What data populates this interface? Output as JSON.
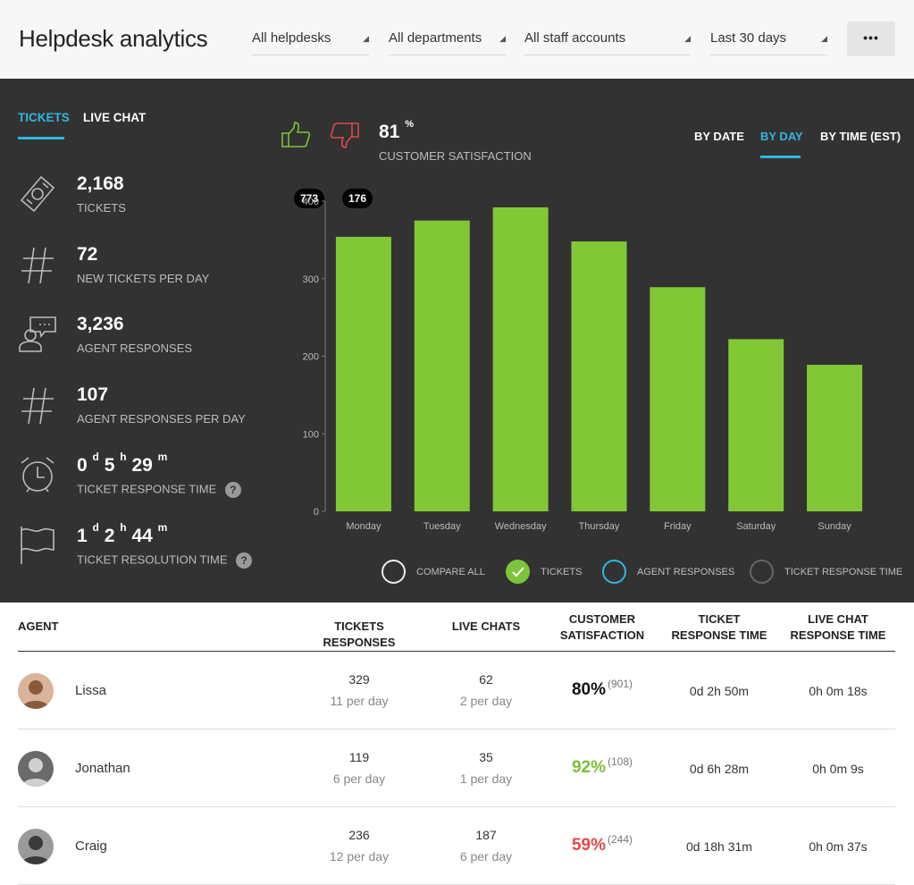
{
  "header": {
    "title": "Helpdesk analytics",
    "filters": {
      "helpdesk": "All helpdesks",
      "department": "All departments",
      "staff": "All staff accounts",
      "period": "Last 30 days"
    },
    "more_label": "•••"
  },
  "tabs": {
    "tickets": "TICKETS",
    "live_chat": "LIVE CHAT"
  },
  "stats": {
    "tickets": {
      "value": "2,168",
      "label": "TICKETS"
    },
    "new_per_day": {
      "value": "72",
      "label": "NEW TICKETS PER DAY"
    },
    "agent_responses": {
      "value": "3,236",
      "label": "AGENT RESPONSES"
    },
    "responses_per_day": {
      "value": "107",
      "label": "AGENT RESPONSES PER DAY"
    },
    "response_time": {
      "d": "0",
      "h": "5",
      "m": "29",
      "label": "TICKET RESPONSE TIME"
    },
    "resolution_time": {
      "d": "1",
      "h": "2",
      "m": "44",
      "label": "TICKET RESOLUTION TIME"
    },
    "unit_d": "d",
    "unit_h": "h",
    "unit_m": "m",
    "help": "?"
  },
  "satisfaction": {
    "likes": "773",
    "dislikes": "176",
    "percent": "81",
    "percent_sign": "%",
    "label": "CUSTOMER SATISFACTION"
  },
  "view_tabs": {
    "by_date": "BY DATE",
    "by_day": "BY DAY",
    "by_time": "BY TIME (EST)"
  },
  "chart_data": {
    "type": "bar",
    "categories": [
      "Monday",
      "Tuesday",
      "Wednesday",
      "Thursday",
      "Friday",
      "Saturday",
      "Sunday"
    ],
    "series": [
      {
        "name": "TICKETS",
        "values": [
          354,
          375,
          392,
          348,
          289,
          222,
          189
        ]
      }
    ],
    "yticks": [
      "0",
      "100",
      "200",
      "300",
      "400"
    ],
    "ylim": [
      0,
      400
    ],
    "color": "#82c836"
  },
  "legend": {
    "compare_all": "COMPARE ALL",
    "tickets": "TICKETS",
    "agent_responses": "AGENT RESPONSES",
    "ticket_response_time": "TICKET RESPONSE TIME"
  },
  "table": {
    "headers": {
      "agent": "AGENT",
      "ticket_responses": "TICKETS RESPONSES",
      "live_chats": "LIVE CHATS",
      "satisfaction_1": "CUSTOMER",
      "satisfaction_2": "SATISFACTION",
      "ticket_rt_1": "TICKET",
      "ticket_rt_2": "RESPONSE TIME",
      "chat_rt_1": "LIVE CHAT",
      "chat_rt_2": "RESPONSE TIME"
    },
    "rows": [
      {
        "name": "Lissa",
        "responses": "329",
        "responses_rate": "11 per day",
        "chats": "62",
        "chats_rate": "2 per day",
        "satisfaction": "80%",
        "sat_count": "(901)",
        "sat_color": "#111111",
        "ticket_rt": "0d 2h 50m",
        "chat_rt": "0h 0m 18s"
      },
      {
        "name": "Jonathan",
        "responses": "119",
        "responses_rate": "6 per day",
        "chats": "35",
        "chats_rate": "1 per day",
        "satisfaction": "92%",
        "sat_count": "(108)",
        "sat_color": "#7cbf35",
        "ticket_rt": "0d 6h 28m",
        "chat_rt": "0h 0m 9s"
      },
      {
        "name": "Craig",
        "responses": "236",
        "responses_rate": "12 per day",
        "chats": "187",
        "chats_rate": "6 per day",
        "satisfaction": "59%",
        "sat_count": "(244)",
        "sat_color": "#e0474c",
        "ticket_rt": "0d 18h 31m",
        "chat_rt": "0h 0m 37s"
      }
    ]
  }
}
